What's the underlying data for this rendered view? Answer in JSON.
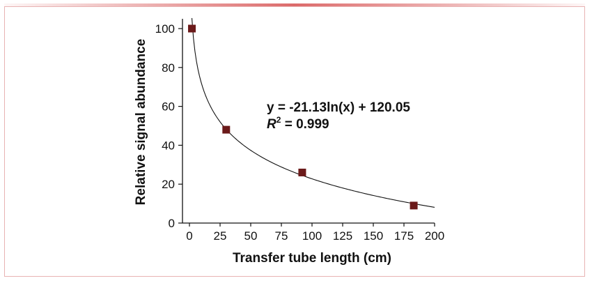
{
  "chart_data": {
    "type": "scatter",
    "title": "",
    "xlabel": "Transfer tube length (cm)",
    "ylabel": "Relative signal abundance",
    "xlim": [
      0,
      200
    ],
    "ylim": [
      0,
      100
    ],
    "x_ticks": [
      0,
      25,
      50,
      75,
      100,
      125,
      150,
      175,
      200
    ],
    "y_ticks": [
      0,
      20,
      40,
      60,
      80,
      100
    ],
    "x_tick_labels": [
      "0",
      "25",
      "50",
      "75",
      "100",
      "125",
      "150",
      "175",
      "200"
    ],
    "y_tick_labels": [
      "0",
      "20",
      "40",
      "60",
      "80",
      "100"
    ],
    "grid": false,
    "legend": "none",
    "series": [
      {
        "x": [
          2,
          30,
          92,
          183
        ],
        "y": [
          100,
          48,
          26,
          9
        ],
        "marker": "square",
        "color": "#6b1a1a"
      }
    ],
    "trendline": {
      "type": "logarithmic",
      "a": -21.13,
      "b": 120.05,
      "x_range": [
        2,
        200
      ],
      "color": "#111111"
    },
    "annotations": {
      "equation": "y = -21.13ln(x) + 120.05",
      "r2_label": "R",
      "r2_superscript": "2",
      "r2_value": " = 0.999"
    }
  }
}
